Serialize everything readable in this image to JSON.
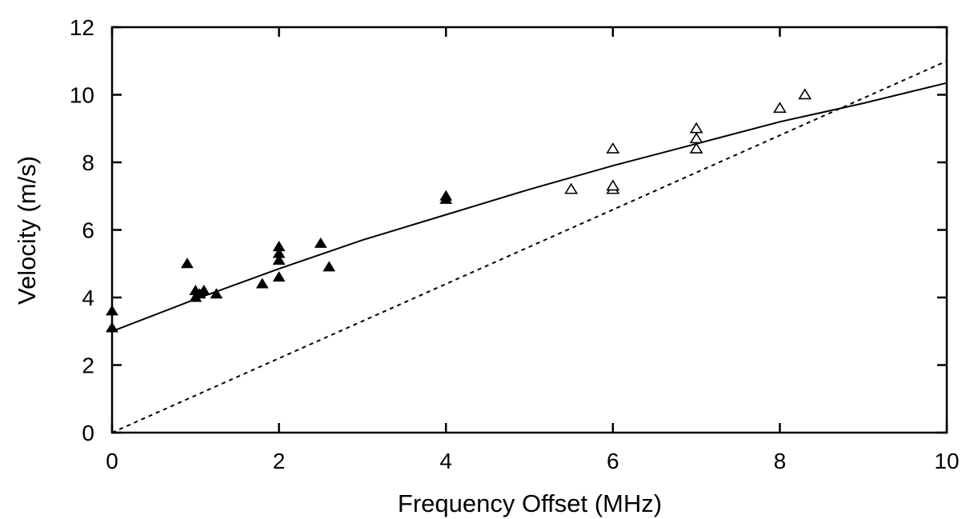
{
  "chart_data": {
    "type": "scatter",
    "title": "",
    "xlabel": "Frequency Offset (MHz)",
    "ylabel": "Velocity  (m/s)",
    "xlim": [
      0,
      10
    ],
    "ylim": [
      0,
      12
    ],
    "x_ticks": [
      0,
      2,
      4,
      6,
      8,
      10
    ],
    "y_ticks": [
      0,
      2,
      4,
      6,
      8,
      10,
      12
    ],
    "x_tick_labels": [
      "0",
      "2",
      "4",
      "6",
      "8",
      "10"
    ],
    "y_tick_labels": [
      "0",
      "2",
      "4",
      "6",
      "8",
      "10",
      "12"
    ],
    "grid": false,
    "legend": "none",
    "series": [
      {
        "marker": "filled-triangle",
        "color": "#000000",
        "points": [
          [
            0.0,
            3.1
          ],
          [
            0.0,
            3.6
          ],
          [
            0.9,
            5.0
          ],
          [
            1.0,
            4.0
          ],
          [
            1.0,
            4.2
          ],
          [
            1.05,
            4.1
          ],
          [
            1.1,
            4.2
          ],
          [
            1.25,
            4.1
          ],
          [
            1.8,
            4.4
          ],
          [
            2.0,
            4.6
          ],
          [
            2.0,
            5.1
          ],
          [
            2.0,
            5.3
          ],
          [
            2.0,
            5.5
          ],
          [
            2.5,
            5.6
          ],
          [
            2.6,
            4.9
          ],
          [
            4.0,
            6.9
          ],
          [
            4.0,
            7.0
          ]
        ]
      },
      {
        "marker": "open-triangle",
        "color": "#000000",
        "points": [
          [
            5.5,
            7.2
          ],
          [
            6.0,
            7.2
          ],
          [
            6.0,
            7.3
          ],
          [
            6.0,
            8.4
          ],
          [
            7.0,
            8.4
          ],
          [
            7.0,
            8.7
          ],
          [
            7.0,
            9.0
          ],
          [
            8.0,
            9.6
          ],
          [
            8.3,
            10.0
          ]
        ]
      },
      {
        "style": "solid-line",
        "color": "#000000",
        "points": [
          [
            0,
            3.0
          ],
          [
            1,
            3.95
          ],
          [
            2,
            4.85
          ],
          [
            3,
            5.7
          ],
          [
            4,
            6.45
          ],
          [
            5,
            7.2
          ],
          [
            6,
            7.9
          ],
          [
            7,
            8.55
          ],
          [
            8,
            9.2
          ],
          [
            9,
            9.75
          ],
          [
            10,
            10.35
          ]
        ]
      },
      {
        "style": "dashed-line",
        "color": "#000000",
        "points": [
          [
            0,
            0
          ],
          [
            10,
            11.0
          ]
        ]
      }
    ]
  }
}
